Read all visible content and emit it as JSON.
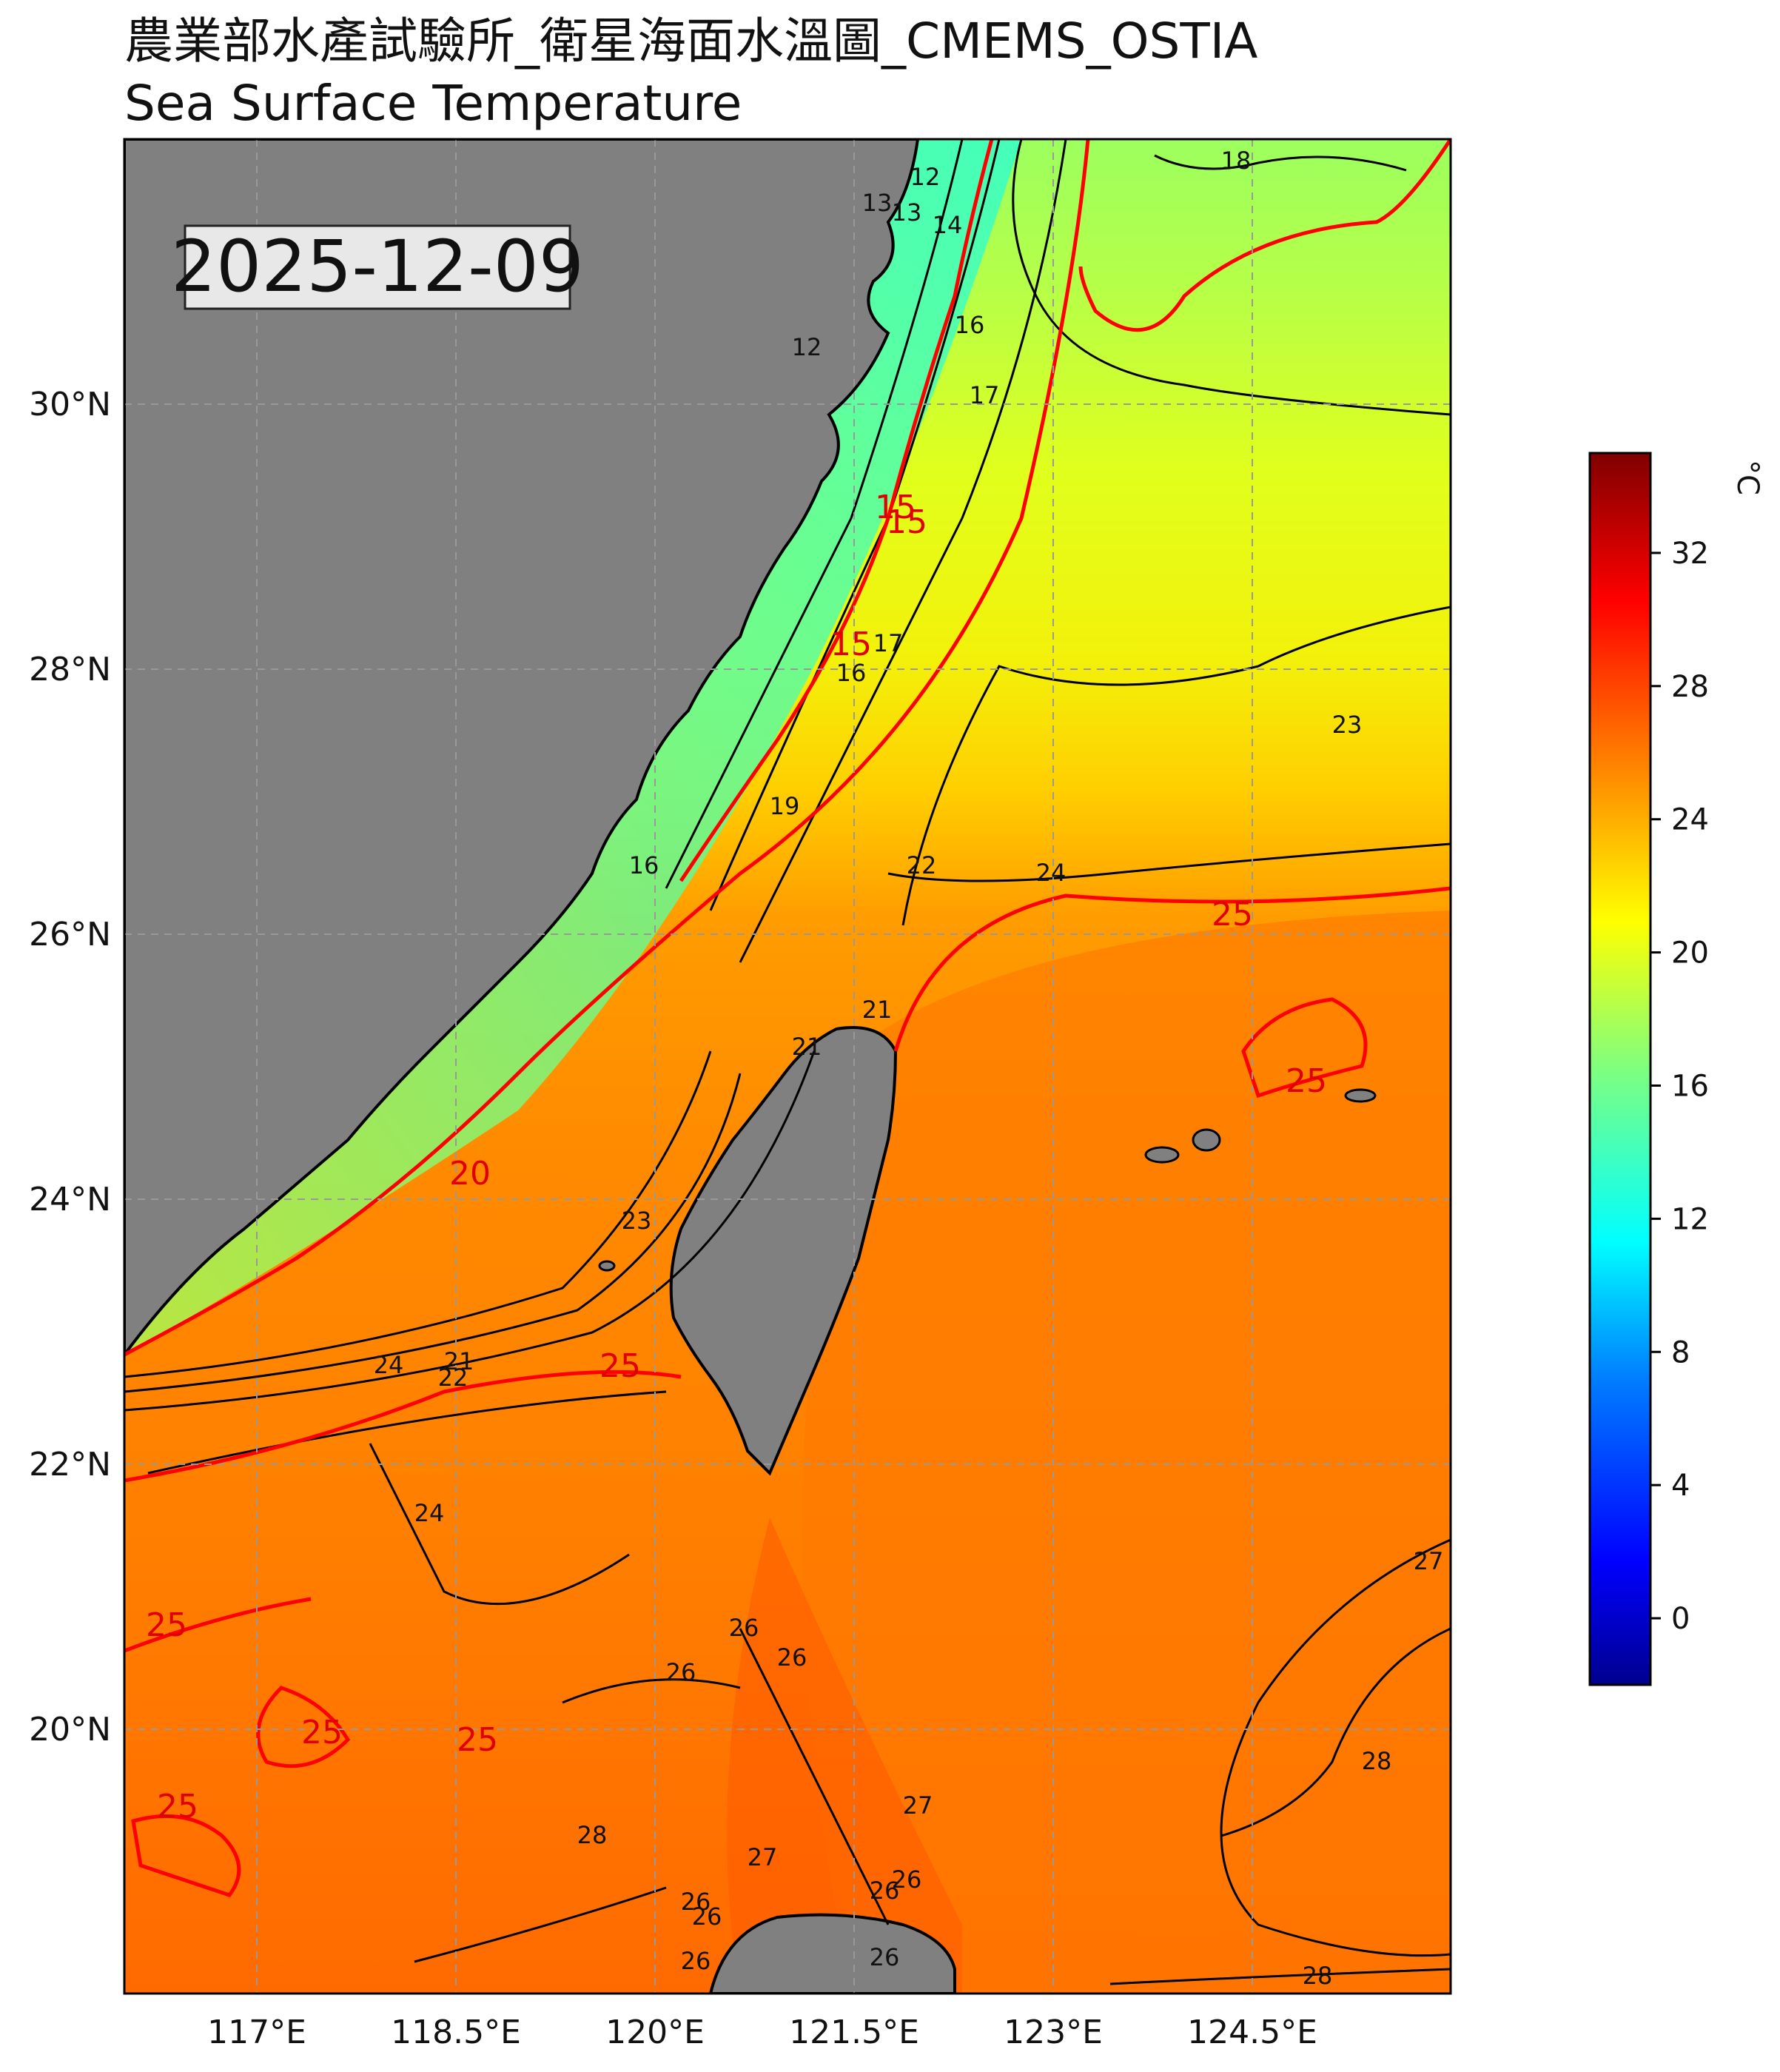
{
  "title": {
    "line1": "農業部水產試驗所_衛星海面水溫圖_CMEMS_OSTIA",
    "line2": "Sea Surface Temperature"
  },
  "date_box": "2025-12-09",
  "map": {
    "lon_ticks": [
      "117°E",
      "118.5°E",
      "120°E",
      "121.5°E",
      "123°E",
      "124.5°E"
    ],
    "lat_ticks": [
      "30°N",
      "28°N",
      "26°N",
      "24°N",
      "22°N",
      "20°N"
    ],
    "extent": {
      "lon_min": 116.0,
      "lon_max": 126.0,
      "lat_min": 18.0,
      "lat_max": 32.0
    },
    "grid": "dashed",
    "land_color": "#808080",
    "land_regions": [
      "China coast",
      "Taiwan",
      "Ryukyu Islands",
      "Luzon (north tip)"
    ],
    "contour_labels_black": [
      "18",
      "13",
      "13",
      "12",
      "14",
      "12",
      "16",
      "17",
      "16",
      "17",
      "19",
      "16",
      "22",
      "24",
      "21",
      "21",
      "23",
      "24",
      "21",
      "22",
      "23",
      "24",
      "26",
      "26",
      "26",
      "27",
      "26",
      "26",
      "28",
      "27",
      "26",
      "27",
      "28",
      "26",
      "26",
      "26",
      "28"
    ],
    "contour_labels_red": [
      "15",
      "15",
      "20",
      "25",
      "25",
      "25",
      "25",
      "25",
      "25",
      "25",
      "15"
    ],
    "highlight_isotherms_c": [
      15,
      20,
      25
    ]
  },
  "colorbar": {
    "unit": "°C",
    "min": -2,
    "max": 35,
    "ticks": [
      "0",
      "4",
      "8",
      "12",
      "16",
      "20",
      "24",
      "28",
      "32"
    ],
    "colormap": "jet"
  }
}
